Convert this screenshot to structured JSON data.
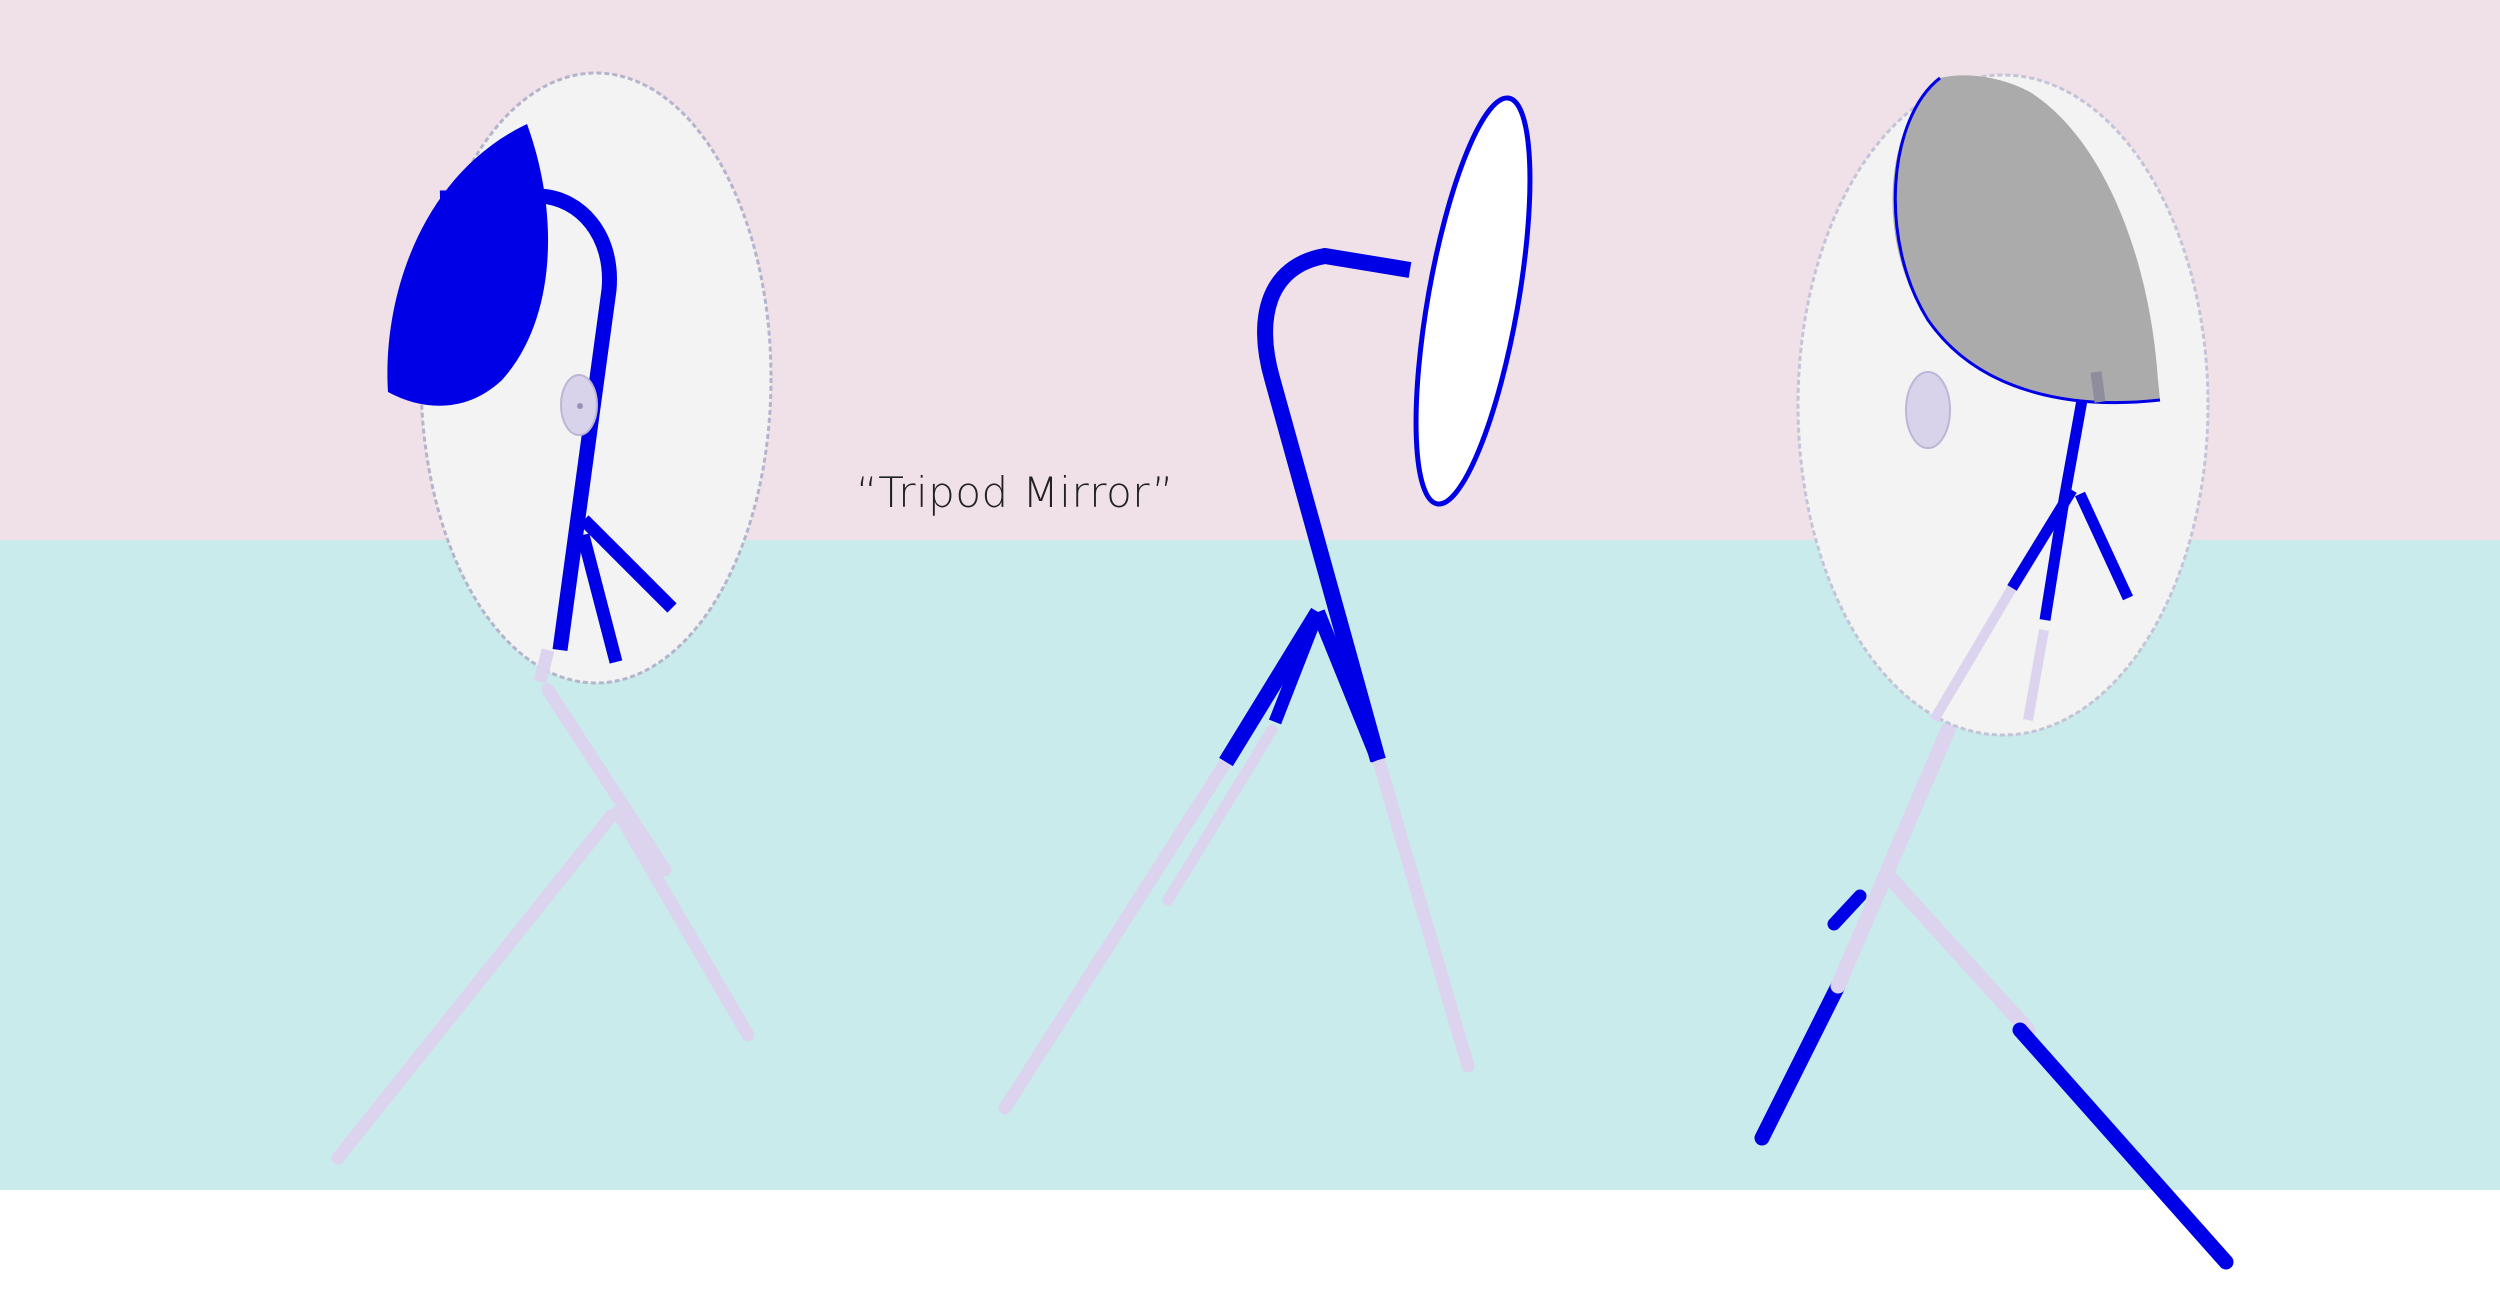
{
  "caption": {
    "text": "“Tripod Mirror”"
  },
  "colors": {
    "background_top": "#f0e0e8",
    "background_middle": "#c9ebeb",
    "background_bottom": "#ffffff",
    "accent_blue": "#0000e6",
    "leg_lavender": "#dcd4ee",
    "mirror_face": "#f3f3f3",
    "mirror_grey": "#ababab",
    "caption_text": "#222222"
  }
}
